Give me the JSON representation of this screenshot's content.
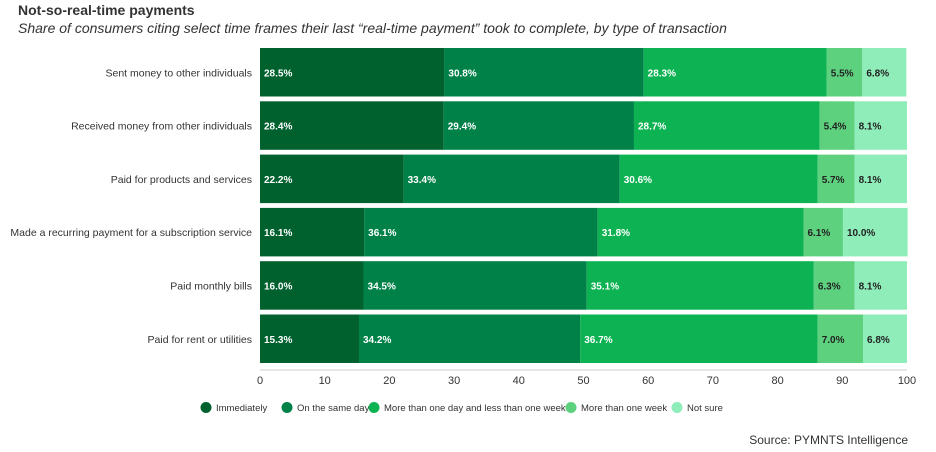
{
  "chart_data": {
    "type": "bar",
    "orientation": "horizontal",
    "stacked": true,
    "title": "Not-so-real-time payments",
    "subtitle": "Share of consumers citing select time frames their last “real-time payment” took to complete, by type of transaction",
    "source": "Source: PYMNTS Intelligence",
    "categories": [
      "Sent money to other individuals",
      "Received money from other individuals",
      "Paid for products and services",
      "Made a recurring payment for a subscription service",
      "Paid monthly bills",
      "Paid for rent or utilities"
    ],
    "series": [
      {
        "name": "Immediately",
        "color": "#00612e",
        "label_color": "#ffffff",
        "values": [
          28.5,
          28.4,
          22.2,
          16.1,
          16.0,
          15.3
        ]
      },
      {
        "name": "On the same day",
        "color": "#008148",
        "label_color": "#ffffff",
        "values": [
          30.8,
          29.4,
          33.4,
          36.1,
          34.5,
          34.2
        ]
      },
      {
        "name": "More than one day and less than one week",
        "color": "#0db252",
        "label_color": "#ffffff",
        "values": [
          28.3,
          28.7,
          30.6,
          31.8,
          35.1,
          36.7
        ]
      },
      {
        "name": "More than one week",
        "color": "#5ed17f",
        "label_color": "#222222",
        "values": [
          5.5,
          5.4,
          5.7,
          6.1,
          6.3,
          7.0
        ]
      },
      {
        "name": "Not sure",
        "color": "#8eedb9",
        "label_color": "#222222",
        "values": [
          6.8,
          8.1,
          8.1,
          10.0,
          8.1,
          6.8
        ]
      }
    ],
    "xlim": [
      0,
      100
    ],
    "xticks": [
      0,
      10,
      20,
      30,
      40,
      50,
      60,
      70,
      80,
      90,
      100
    ],
    "value_suffix": "%",
    "legend_position": "bottom"
  }
}
